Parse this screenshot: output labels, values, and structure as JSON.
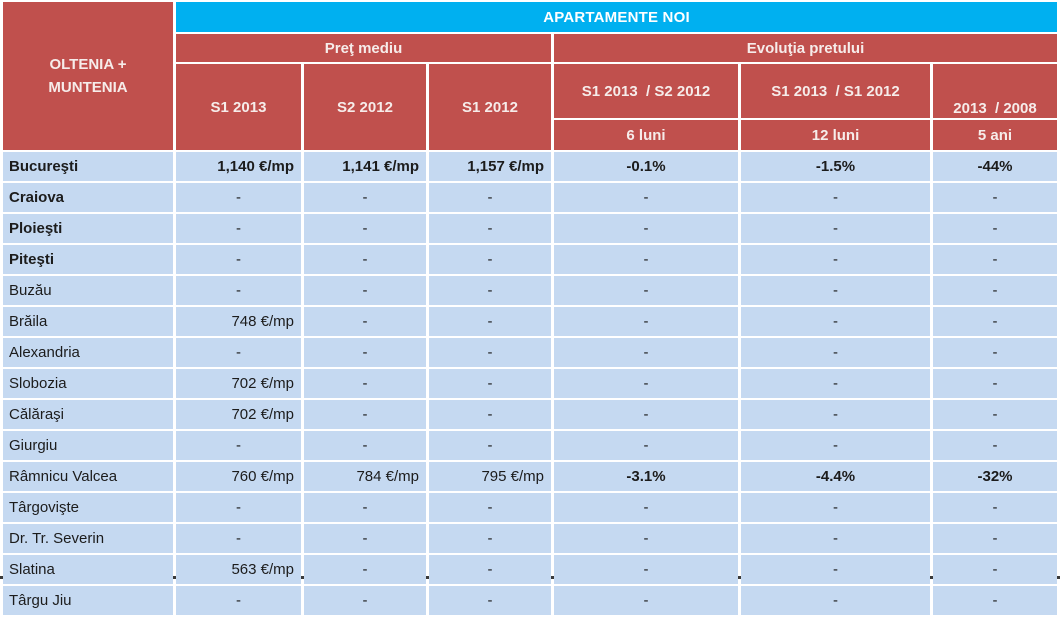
{
  "chart_data": {
    "type": "table",
    "title": "APARTAMENTE NOI",
    "region_header": {
      "line1": "OLTENIA +",
      "line2": "MUNTENIA"
    },
    "groups": {
      "price": {
        "label": "Preţ mediu",
        "columns": [
          "S1 2013",
          "S2 2012",
          "S1 2012"
        ]
      },
      "evolution": {
        "label": "Evoluţia pretului",
        "columns": [
          {
            "label": "S1 2013  / S2 2012",
            "period": "6 luni"
          },
          {
            "label": "S1 2013  / S1 2012",
            "period": "12 luni"
          },
          {
            "label": "2013  / 2008",
            "period": "5 ani"
          }
        ]
      }
    },
    "rows": [
      {
        "city": "Bucureşti",
        "city_bold": true,
        "values": [
          {
            "text": "1,140 €/mp",
            "bold": true
          },
          {
            "text": "1,141 €/mp",
            "bold": true
          },
          {
            "text": "1,157 €/mp",
            "bold": true
          },
          {
            "text": "-0.1%",
            "bold": true
          },
          {
            "text": "-1.5%",
            "bold": true
          },
          {
            "text": "-44%",
            "bold": true
          }
        ]
      },
      {
        "city": "Craiova",
        "city_bold": true,
        "values": [
          {
            "text": "-",
            "bold": false
          },
          {
            "text": "-",
            "bold": false
          },
          {
            "text": "-",
            "bold": false
          },
          {
            "text": "-",
            "bold": false
          },
          {
            "text": "-",
            "bold": false
          },
          {
            "text": "-",
            "bold": false
          }
        ]
      },
      {
        "city": "Ploieşti",
        "city_bold": true,
        "values": [
          {
            "text": "-",
            "bold": false
          },
          {
            "text": "-",
            "bold": false
          },
          {
            "text": "-",
            "bold": false
          },
          {
            "text": "-",
            "bold": false
          },
          {
            "text": "-",
            "bold": false
          },
          {
            "text": "-",
            "bold": false
          }
        ]
      },
      {
        "city": "Piteşti",
        "city_bold": true,
        "values": [
          {
            "text": "-",
            "bold": false
          },
          {
            "text": "-",
            "bold": false
          },
          {
            "text": "-",
            "bold": false
          },
          {
            "text": "-",
            "bold": false
          },
          {
            "text": "-",
            "bold": false
          },
          {
            "text": "-",
            "bold": false
          }
        ]
      },
      {
        "city": "Buzău",
        "city_bold": false,
        "values": [
          {
            "text": "-",
            "bold": false
          },
          {
            "text": "-",
            "bold": false
          },
          {
            "text": "-",
            "bold": false
          },
          {
            "text": "-",
            "bold": false
          },
          {
            "text": "-",
            "bold": false
          },
          {
            "text": "-",
            "bold": false
          }
        ]
      },
      {
        "city": "Brăila",
        "city_bold": false,
        "values": [
          {
            "text": "748 €/mp",
            "bold": false
          },
          {
            "text": "-",
            "bold": false
          },
          {
            "text": "-",
            "bold": false
          },
          {
            "text": "-",
            "bold": false
          },
          {
            "text": "-",
            "bold": false
          },
          {
            "text": "-",
            "bold": false
          }
        ]
      },
      {
        "city": "Alexandria",
        "city_bold": false,
        "values": [
          {
            "text": "-",
            "bold": false
          },
          {
            "text": "-",
            "bold": false
          },
          {
            "text": "-",
            "bold": false
          },
          {
            "text": "-",
            "bold": false
          },
          {
            "text": "-",
            "bold": false
          },
          {
            "text": "-",
            "bold": false
          }
        ]
      },
      {
        "city": "Slobozia",
        "city_bold": false,
        "values": [
          {
            "text": "702 €/mp",
            "bold": false
          },
          {
            "text": "-",
            "bold": false
          },
          {
            "text": "-",
            "bold": false
          },
          {
            "text": "-",
            "bold": false
          },
          {
            "text": "-",
            "bold": false
          },
          {
            "text": "-",
            "bold": false
          }
        ]
      },
      {
        "city": "Călăraşi",
        "city_bold": false,
        "values": [
          {
            "text": "702 €/mp",
            "bold": false
          },
          {
            "text": "-",
            "bold": false
          },
          {
            "text": "-",
            "bold": false
          },
          {
            "text": "-",
            "bold": false
          },
          {
            "text": "-",
            "bold": false
          },
          {
            "text": "-",
            "bold": false
          }
        ]
      },
      {
        "city": "Giurgiu",
        "city_bold": false,
        "values": [
          {
            "text": "-",
            "bold": false
          },
          {
            "text": "-",
            "bold": false
          },
          {
            "text": "-",
            "bold": false
          },
          {
            "text": "-",
            "bold": false
          },
          {
            "text": "-",
            "bold": false
          },
          {
            "text": "-",
            "bold": false
          }
        ]
      },
      {
        "city": "Râmnicu Valcea",
        "city_bold": false,
        "values": [
          {
            "text": "760 €/mp",
            "bold": false
          },
          {
            "text": "784 €/mp",
            "bold": false
          },
          {
            "text": "795 €/mp",
            "bold": false
          },
          {
            "text": "-3.1%",
            "bold": true
          },
          {
            "text": "-4.4%",
            "bold": true
          },
          {
            "text": "-32%",
            "bold": true
          }
        ]
      },
      {
        "city": "Târgovişte",
        "city_bold": false,
        "values": [
          {
            "text": "-",
            "bold": false
          },
          {
            "text": "-",
            "bold": false
          },
          {
            "text": "-",
            "bold": false
          },
          {
            "text": "-",
            "bold": false
          },
          {
            "text": "-",
            "bold": false
          },
          {
            "text": "-",
            "bold": false
          }
        ]
      },
      {
        "city": "Dr. Tr. Severin",
        "city_bold": false,
        "values": [
          {
            "text": "-",
            "bold": false
          },
          {
            "text": "-",
            "bold": false
          },
          {
            "text": "-",
            "bold": false
          },
          {
            "text": "-",
            "bold": false
          },
          {
            "text": "-",
            "bold": false
          },
          {
            "text": "-",
            "bold": false
          }
        ]
      },
      {
        "city": "Slatina",
        "city_bold": false,
        "values": [
          {
            "text": "563 €/mp",
            "bold": false
          },
          {
            "text": "-",
            "bold": false
          },
          {
            "text": "-",
            "bold": false
          },
          {
            "text": "-",
            "bold": false
          },
          {
            "text": "-",
            "bold": false
          },
          {
            "text": "-",
            "bold": false
          }
        ]
      },
      {
        "city": "Târgu Jiu",
        "city_bold": false,
        "values": [
          {
            "text": "-",
            "bold": false
          },
          {
            "text": "-",
            "bold": false
          },
          {
            "text": "-",
            "bold": false
          },
          {
            "text": "-",
            "bold": false
          },
          {
            "text": "-",
            "bold": false
          },
          {
            "text": "-",
            "bold": false
          }
        ]
      }
    ]
  },
  "colors": {
    "title_band": "#00b0f0",
    "title_text": "#ffffff",
    "header_fill": "#c0504d",
    "header_text": "#f6ecea",
    "row_fill": "#c5d9f1",
    "data_text": "#1c1c1c",
    "grid": "#ffffff"
  }
}
